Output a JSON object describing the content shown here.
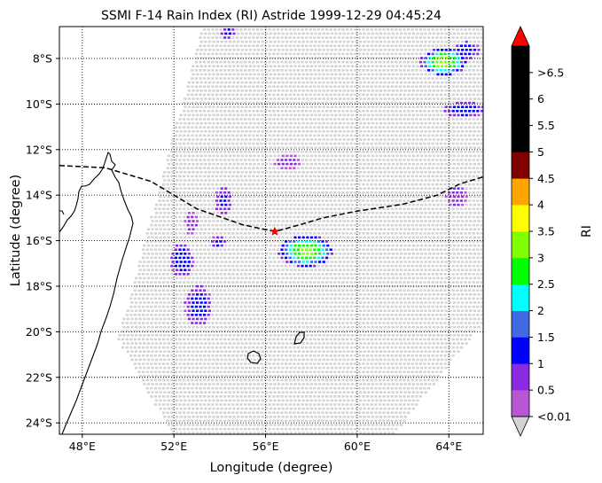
{
  "title": "SSMI F-14 Rain Index (RI) Astride 1999-12-29 04:45:24",
  "x_axis": {
    "label": "Longitude (degree)",
    "ticks": [
      {
        "value": 48,
        "label": "48°E"
      },
      {
        "value": 52,
        "label": "52°E"
      },
      {
        "value": 56,
        "label": "56°E"
      },
      {
        "value": 60,
        "label": "60°E"
      },
      {
        "value": 64,
        "label": "64°E"
      }
    ],
    "range": [
      47,
      65.5
    ]
  },
  "y_axis": {
    "label": "Latitude (degree)",
    "ticks": [
      {
        "value": -8,
        "label": "8°S"
      },
      {
        "value": -10,
        "label": "10°S"
      },
      {
        "value": -12,
        "label": "12°S"
      },
      {
        "value": -14,
        "label": "14°S"
      },
      {
        "value": -16,
        "label": "16°S"
      },
      {
        "value": -18,
        "label": "18°S"
      },
      {
        "value": -20,
        "label": "20°S"
      },
      {
        "value": -22,
        "label": "22°S"
      },
      {
        "value": -24,
        "label": "24°S"
      }
    ],
    "range": [
      -24.5,
      -6.6
    ]
  },
  "colorbar": {
    "label": "RI",
    "colors": [
      "#b857d6",
      "#8a2be2",
      "#0000ff",
      "#4169e1",
      "#00ffff",
      "#00ff00",
      "#7fff00",
      "#ffff00",
      "#ffa500",
      "#800000",
      "#000000",
      "#000000",
      "#000000",
      "#000000"
    ],
    "under_color": "#d3d3d3",
    "over_color": "#ff0000",
    "tick_labels": [
      "<0.01",
      "0.5",
      "1",
      "1.5",
      "2",
      "2.5",
      "3",
      "3.5",
      "4",
      "4.5",
      "5",
      "5.5",
      "6",
      ">6.5"
    ]
  },
  "chart_data": {
    "type": "scatter",
    "title": "SSMI F-14 Rain Index (RI) Astride 1999-12-29 04:45:24",
    "xlabel": "Longitude (degree)",
    "ylabel": "Latitude (degree)",
    "xlim": [
      47,
      65.5
    ],
    "ylim": [
      -24.5,
      -6.6
    ],
    "grid": true,
    "swath_corners": [
      [
        53.2,
        -6.6
      ],
      [
        65.5,
        -6.6
      ],
      [
        65.5,
        -19.5
      ],
      [
        61.5,
        -24.5
      ],
      [
        51.9,
        -24.5
      ],
      [
        49.5,
        -20.3
      ]
    ],
    "track": [
      [
        47,
        -12.7
      ],
      [
        49,
        -12.8
      ],
      [
        51,
        -13.4
      ],
      [
        53,
        -14.6
      ],
      [
        55,
        -15.3
      ],
      [
        56.4,
        -15.6
      ],
      [
        57.5,
        -15.3
      ],
      [
        58.5,
        -15
      ],
      [
        60,
        -14.7
      ],
      [
        62,
        -14.4
      ],
      [
        63.5,
        -14
      ],
      [
        64.5,
        -13.5
      ],
      [
        65.5,
        -13.2
      ]
    ],
    "storm_center": [
      56.4,
      -15.6
    ],
    "rain_cells": [
      {
        "lon": 57.7,
        "lat": -16.4,
        "rx": 1.2,
        "ry": 0.7,
        "peak": 3.0
      },
      {
        "lon": 63.7,
        "lat": -8.1,
        "rx": 1.0,
        "ry": 0.6,
        "peak": 3.2
      },
      {
        "lon": 64.6,
        "lat": -10.2,
        "rx": 0.9,
        "ry": 0.35,
        "peak": 1.3
      },
      {
        "lon": 64.7,
        "lat": -7.6,
        "rx": 0.6,
        "ry": 0.4,
        "peak": 1.2
      },
      {
        "lon": 52.3,
        "lat": -16.8,
        "rx": 0.5,
        "ry": 0.8,
        "peak": 1.2
      },
      {
        "lon": 53.0,
        "lat": -18.8,
        "rx": 0.6,
        "ry": 0.9,
        "peak": 1.2
      },
      {
        "lon": 54.1,
        "lat": -14.2,
        "rx": 0.4,
        "ry": 0.6,
        "peak": 1.1
      },
      {
        "lon": 52.7,
        "lat": -15.2,
        "rx": 0.3,
        "ry": 0.5,
        "peak": 0.6
      },
      {
        "lon": 56.9,
        "lat": -12.5,
        "rx": 0.6,
        "ry": 0.35,
        "peak": 0.5
      },
      {
        "lon": 64.3,
        "lat": -14.0,
        "rx": 0.5,
        "ry": 0.5,
        "peak": 0.6
      },
      {
        "lon": 53.9,
        "lat": -16.0,
        "rx": 0.3,
        "ry": 0.3,
        "peak": 1.1
      },
      {
        "lon": 54.3,
        "lat": -6.8,
        "rx": 0.3,
        "ry": 0.3,
        "peak": 1.0
      }
    ]
  }
}
